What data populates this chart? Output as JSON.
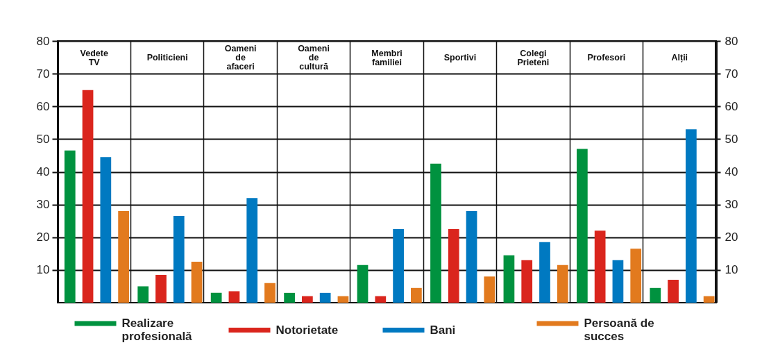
{
  "chart_data": {
    "type": "bar",
    "categories": [
      "Vedete TV",
      "Politicieni",
      "Oameni de afaceri",
      "Oameni de cultură",
      "Membri familiei",
      "Sportivi",
      "Colegi Prieteni",
      "Profesori",
      "Alții"
    ],
    "series": [
      {
        "name": "Realizare profesională",
        "color": "#00923f",
        "values": [
          46.5,
          5,
          3,
          3,
          11.5,
          42.5,
          14.5,
          47,
          4.5
        ]
      },
      {
        "name": "Notorietate",
        "color": "#da251d",
        "values": [
          65,
          8.5,
          3.5,
          2,
          2,
          22.5,
          13,
          22,
          7
        ]
      },
      {
        "name": "Bani",
        "color": "#0079c1",
        "values": [
          44.5,
          26.5,
          32,
          3,
          22.5,
          28,
          18.5,
          13,
          53
        ]
      },
      {
        "name": "Persoană de succes",
        "color": "#e27a1e",
        "values": [
          28,
          12.5,
          6,
          2,
          4.5,
          8,
          11.5,
          16.5,
          2
        ]
      }
    ],
    "ylim": [
      0,
      80
    ],
    "yticks": [
      10,
      20,
      30,
      40,
      50,
      60,
      70,
      80
    ],
    "y2lim": [
      0,
      80
    ],
    "y2ticks": [
      10,
      20,
      30,
      40,
      50,
      60,
      70,
      80
    ],
    "grid": true,
    "legend": "bottom"
  }
}
